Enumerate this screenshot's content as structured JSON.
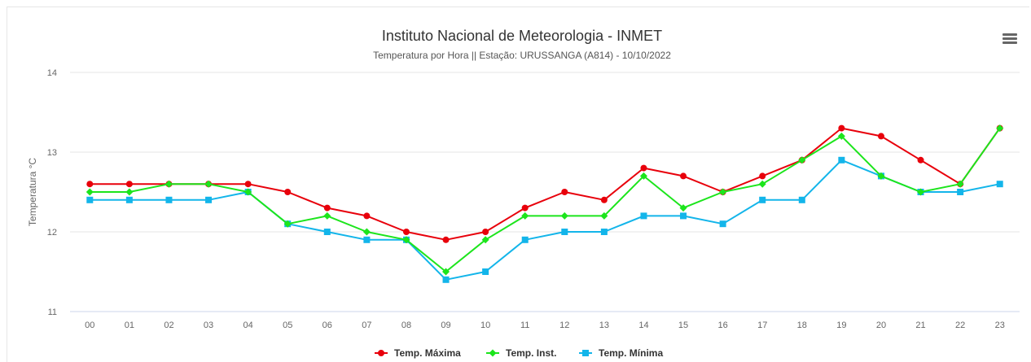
{
  "chart_data": {
    "type": "line",
    "title": "Instituto Nacional de Meteorologia - INMET",
    "subtitle": "Temperatura por Hora || Estação: URUSSANGA (A814) - 10/10/2022",
    "xlabel": "",
    "ylabel": "Temperatura °C",
    "categories": [
      "00",
      "01",
      "02",
      "03",
      "04",
      "05",
      "06",
      "07",
      "08",
      "09",
      "10",
      "11",
      "12",
      "13",
      "14",
      "15",
      "16",
      "17",
      "18",
      "19",
      "20",
      "21",
      "22",
      "23"
    ],
    "ylim": [
      11,
      14
    ],
    "yticks": [
      11,
      12,
      13,
      14
    ],
    "grid": true,
    "legend_position": "bottom-center",
    "series": [
      {
        "name": "Temp. Máxima",
        "color": "#e8000b",
        "marker": "circle",
        "values": [
          12.6,
          12.6,
          12.6,
          12.6,
          12.6,
          12.5,
          12.3,
          12.2,
          12.0,
          11.9,
          12.0,
          12.3,
          12.5,
          12.4,
          12.8,
          12.7,
          12.5,
          12.7,
          12.9,
          13.3,
          13.2,
          12.9,
          12.6,
          13.3
        ]
      },
      {
        "name": "Temp. Inst.",
        "color": "#1ce51c",
        "marker": "diamond",
        "values": [
          12.5,
          12.5,
          12.6,
          12.6,
          12.5,
          12.1,
          12.2,
          12.0,
          11.9,
          11.5,
          11.9,
          12.2,
          12.2,
          12.2,
          12.7,
          12.3,
          12.5,
          12.6,
          12.9,
          13.2,
          12.7,
          12.5,
          12.6,
          13.3
        ]
      },
      {
        "name": "Temp. Mínima",
        "color": "#13b5ea",
        "marker": "square",
        "values": [
          12.4,
          12.4,
          12.4,
          12.4,
          12.5,
          12.1,
          12.0,
          11.9,
          11.9,
          11.4,
          11.5,
          11.9,
          12.0,
          12.0,
          12.2,
          12.2,
          12.1,
          12.4,
          12.4,
          12.9,
          12.7,
          12.5,
          12.5,
          12.6
        ]
      }
    ]
  },
  "menu": {
    "icon": "hamburger-menu-icon"
  }
}
